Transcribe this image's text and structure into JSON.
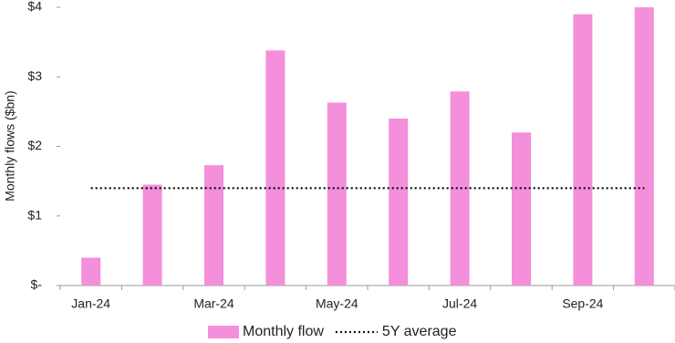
{
  "chart_data": {
    "type": "bar",
    "y_label": "Monthly flows ($bn)",
    "categories": [
      "Jan-24",
      null,
      "Mar-24",
      null,
      "May-24",
      null,
      "Jul-24",
      null,
      "Sep-24",
      null
    ],
    "series": [
      {
        "name": "Monthly flow",
        "type": "bar",
        "color": "#f48fdc",
        "values": [
          0.4,
          1.45,
          1.73,
          3.38,
          2.63,
          2.4,
          2.79,
          2.2,
          3.9,
          4.0
        ]
      },
      {
        "name": "5Y average",
        "type": "line",
        "color": "#111111",
        "values": [
          1.4,
          1.4,
          1.4,
          1.4,
          1.4,
          1.4,
          1.4,
          1.4,
          1.4,
          1.4
        ]
      }
    ],
    "ylim": [
      0,
      4
    ],
    "yticks": [
      {
        "value": 0,
        "label": "$-"
      },
      {
        "value": 1,
        "label": "$1"
      },
      {
        "value": 2,
        "label": "$2"
      },
      {
        "value": 3,
        "label": "$3"
      },
      {
        "value": 4,
        "label": "$4"
      }
    ],
    "grid": false,
    "legend": "bottom"
  }
}
